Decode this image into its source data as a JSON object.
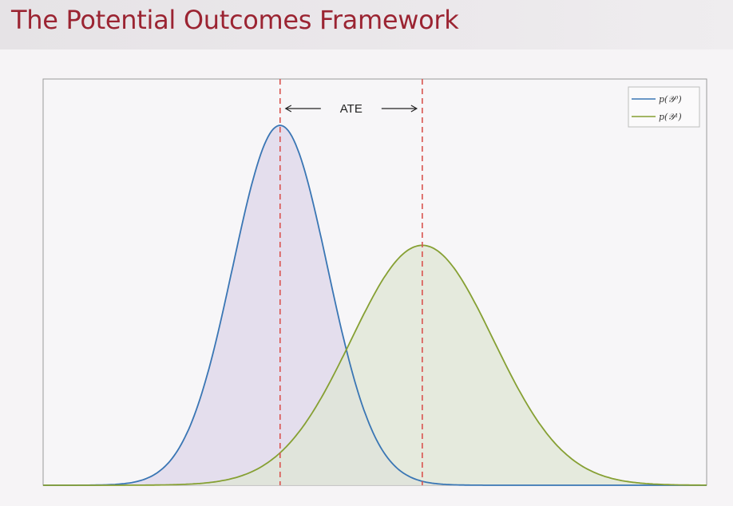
{
  "slide": {
    "title": "The Potential Outcomes Framework"
  },
  "chart_data": {
    "type": "area",
    "title": "",
    "xlabel": "",
    "ylabel": "",
    "xlim": [
      -5,
      9
    ],
    "ylim": [
      0,
      0.4
    ],
    "grid": false,
    "legend_position": "top-right",
    "series": [
      {
        "name": "p(𝒴⁰)",
        "distribution": "normal",
        "mean": 0,
        "std": 1,
        "peak": 0.399,
        "color": "#3a76b4",
        "fill": "#ddd6ea"
      },
      {
        "name": "p(𝒴¹)",
        "distribution": "normal",
        "mean": 3,
        "std": 1.5,
        "peak": 0.266,
        "color": "#86a033",
        "fill": "#dfe6d4"
      }
    ],
    "reference_lines": [
      {
        "x": 0,
        "color": "#d9534f",
        "style": "dashed"
      },
      {
        "x": 3,
        "color": "#d9534f",
        "style": "dashed"
      }
    ],
    "annotation": {
      "text": "ATE",
      "from_x": 0,
      "to_x": 3
    }
  }
}
